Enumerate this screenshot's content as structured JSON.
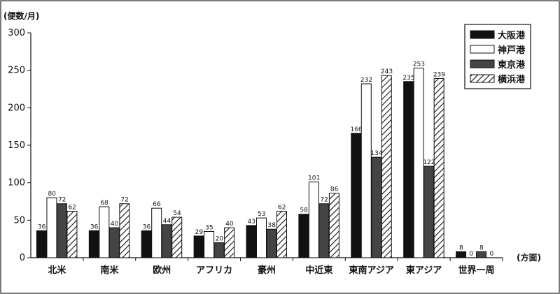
{
  "chart_data": {
    "type": "bar",
    "ylabel": "(便数/月)",
    "xlabel": "(方面)",
    "ylim": [
      0,
      300
    ],
    "yticks": [
      0,
      50,
      100,
      150,
      200,
      250,
      300
    ],
    "categories": [
      "北米",
      "南米",
      "欧州",
      "アフリカ",
      "豪州",
      "中近東",
      "東南アジア",
      "東アジア",
      "世界一周"
    ],
    "series": [
      {
        "name": "大阪港",
        "fill": "#111111",
        "pattern": "solid",
        "values": [
          36,
          36,
          36,
          29,
          43,
          58,
          166,
          235,
          8
        ]
      },
      {
        "name": "神戸港",
        "fill": "#ffffff",
        "pattern": "none",
        "values": [
          80,
          68,
          66,
          35,
          53,
          101,
          232,
          253,
          0
        ]
      },
      {
        "name": "東京港",
        "fill": "#444444",
        "pattern": "solid",
        "values": [
          72,
          40,
          44,
          20,
          38,
          72,
          134,
          122,
          8
        ]
      },
      {
        "name": "横浜港",
        "fill": "#ffffff",
        "pattern": "hatch",
        "values": [
          62,
          72,
          54,
          40,
          62,
          86,
          243,
          239,
          0
        ]
      }
    ],
    "legend_position": "top-right",
    "grid": false
  }
}
